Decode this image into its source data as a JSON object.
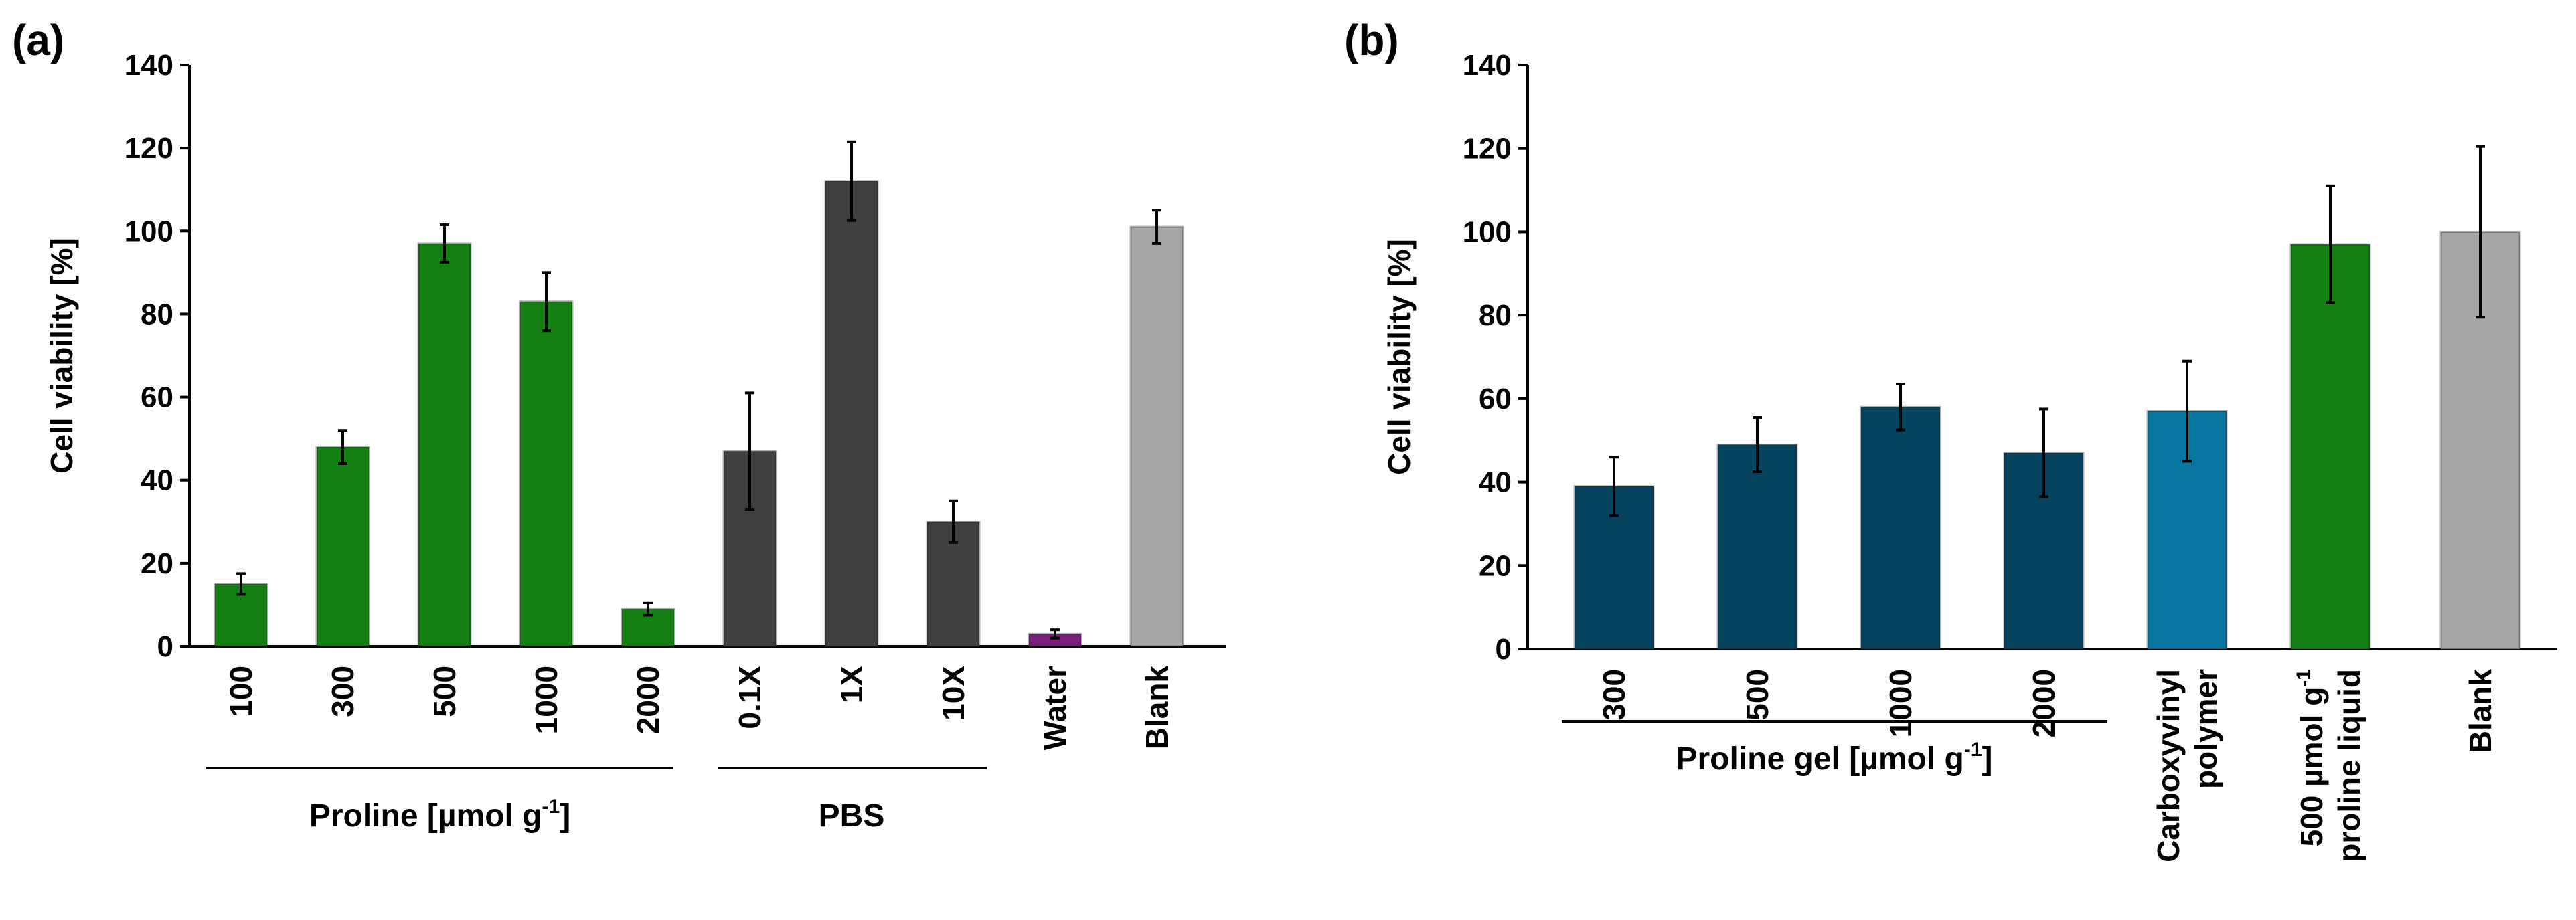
{
  "chart_data": [
    {
      "type": "bar",
      "panel_label": "(a)",
      "ylabel": "Cell viability [%]",
      "ylim": [
        0,
        140
      ],
      "yticks": [
        "0",
        "20",
        "40",
        "60",
        "80",
        "100",
        "120",
        "140"
      ],
      "categories": [
        "100",
        "300",
        "500",
        "1000",
        "2000",
        "0.1X",
        "1X",
        "10X",
        "Water",
        "Blank"
      ],
      "values": [
        15,
        48,
        97,
        83,
        9,
        47,
        112,
        30,
        3,
        101
      ],
      "errors": [
        2.5,
        4,
        4.5,
        7,
        1.5,
        14,
        9.5,
        5,
        1,
        4
      ],
      "colors": [
        "#148014",
        "#148014",
        "#148014",
        "#148014",
        "#148014",
        "#404040",
        "#404040",
        "#404040",
        "#7a1f7a",
        "#a6a6a6"
      ],
      "groups": [
        {
          "label_main": "Proline [µmol g",
          "label_sup": "-1",
          "label_end": "]"
        },
        {
          "label_main": "PBS",
          "label_sup": "",
          "label_end": ""
        }
      ]
    },
    {
      "type": "bar",
      "panel_label": "(b)",
      "ylabel": "Cell viability [%]",
      "ylim": [
        0,
        140
      ],
      "yticks": [
        "0",
        "20",
        "40",
        "60",
        "80",
        "100",
        "120",
        "140"
      ],
      "categories": [
        {
          "lines": [
            "300"
          ]
        },
        {
          "lines": [
            "500"
          ]
        },
        {
          "lines": [
            "1000"
          ]
        },
        {
          "lines": [
            "2000"
          ]
        },
        {
          "lines": [
            "Carboxyvinyl",
            "polymer"
          ]
        },
        {
          "lines": [
            "500 µmol g",
            "proline liquid"
          ],
          "sup": "-1"
        },
        {
          "lines": [
            "Blank"
          ]
        }
      ],
      "values": [
        39,
        49,
        58,
        47,
        57,
        97,
        100
      ],
      "errors": [
        7,
        6.5,
        5.5,
        10.5,
        12,
        14,
        20.5
      ],
      "colors": [
        "#05435f",
        "#05435f",
        "#05435f",
        "#05435f",
        "#0676a0",
        "#148014",
        "#a6a6a6"
      ],
      "groups": [
        {
          "label_main": "Proline gel [µmol g",
          "label_sup": "-1",
          "label_end": "]"
        }
      ]
    }
  ]
}
